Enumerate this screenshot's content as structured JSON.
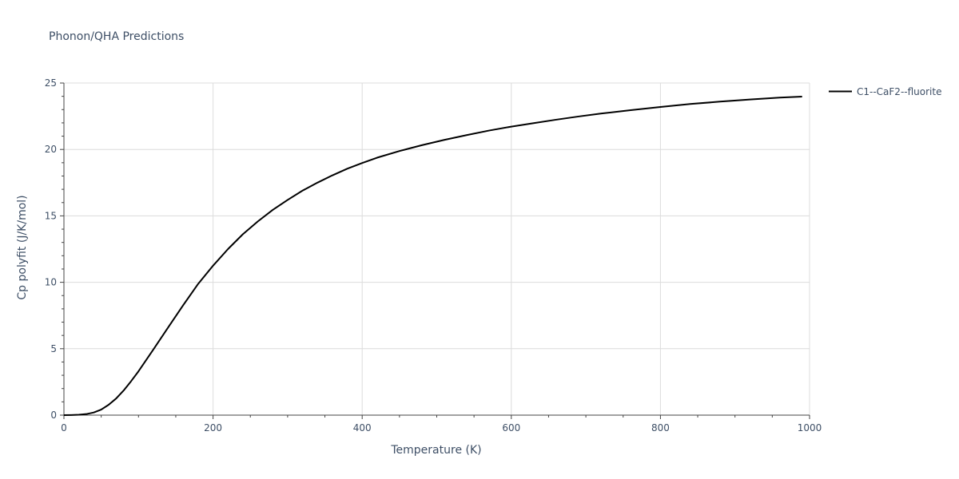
{
  "chart_data": {
    "type": "line",
    "title": "Phonon/QHA Predictions",
    "xlabel": "Temperature (K)",
    "ylabel": "Cp polyfit (J/K/mol)",
    "xlim": [
      0,
      1000
    ],
    "ylim": [
      0,
      25
    ],
    "xticks": [
      0,
      200,
      400,
      600,
      800,
      1000
    ],
    "xtick_labels": [
      "0",
      "200",
      "400",
      "600",
      "800",
      "1000"
    ],
    "yticks": [
      0,
      5,
      10,
      15,
      20,
      25
    ],
    "ytick_labels": [
      "0",
      "5",
      "10",
      "15",
      "20",
      "25"
    ],
    "grid": true,
    "legend_position": "top-right outside",
    "series": [
      {
        "name": "C1--CaF2--fluorite",
        "color": "#000000",
        "x": [
          0,
          10,
          20,
          30,
          40,
          50,
          60,
          70,
          80,
          90,
          100,
          120,
          140,
          160,
          180,
          200,
          220,
          240,
          260,
          280,
          300,
          320,
          340,
          360,
          380,
          400,
          420,
          450,
          480,
          510,
          540,
          570,
          600,
          630,
          660,
          690,
          720,
          760,
          800,
          840,
          880,
          920,
          960,
          990
        ],
        "y": [
          0,
          0.01,
          0.03,
          0.08,
          0.2,
          0.42,
          0.78,
          1.25,
          1.85,
          2.55,
          3.3,
          4.95,
          6.62,
          8.28,
          9.88,
          11.25,
          12.5,
          13.62,
          14.58,
          15.45,
          16.2,
          16.9,
          17.5,
          18.05,
          18.55,
          18.98,
          19.38,
          19.88,
          20.32,
          20.72,
          21.08,
          21.42,
          21.72,
          21.98,
          22.24,
          22.48,
          22.7,
          22.96,
          23.2,
          23.42,
          23.6,
          23.76,
          23.9,
          23.98
        ]
      }
    ]
  }
}
